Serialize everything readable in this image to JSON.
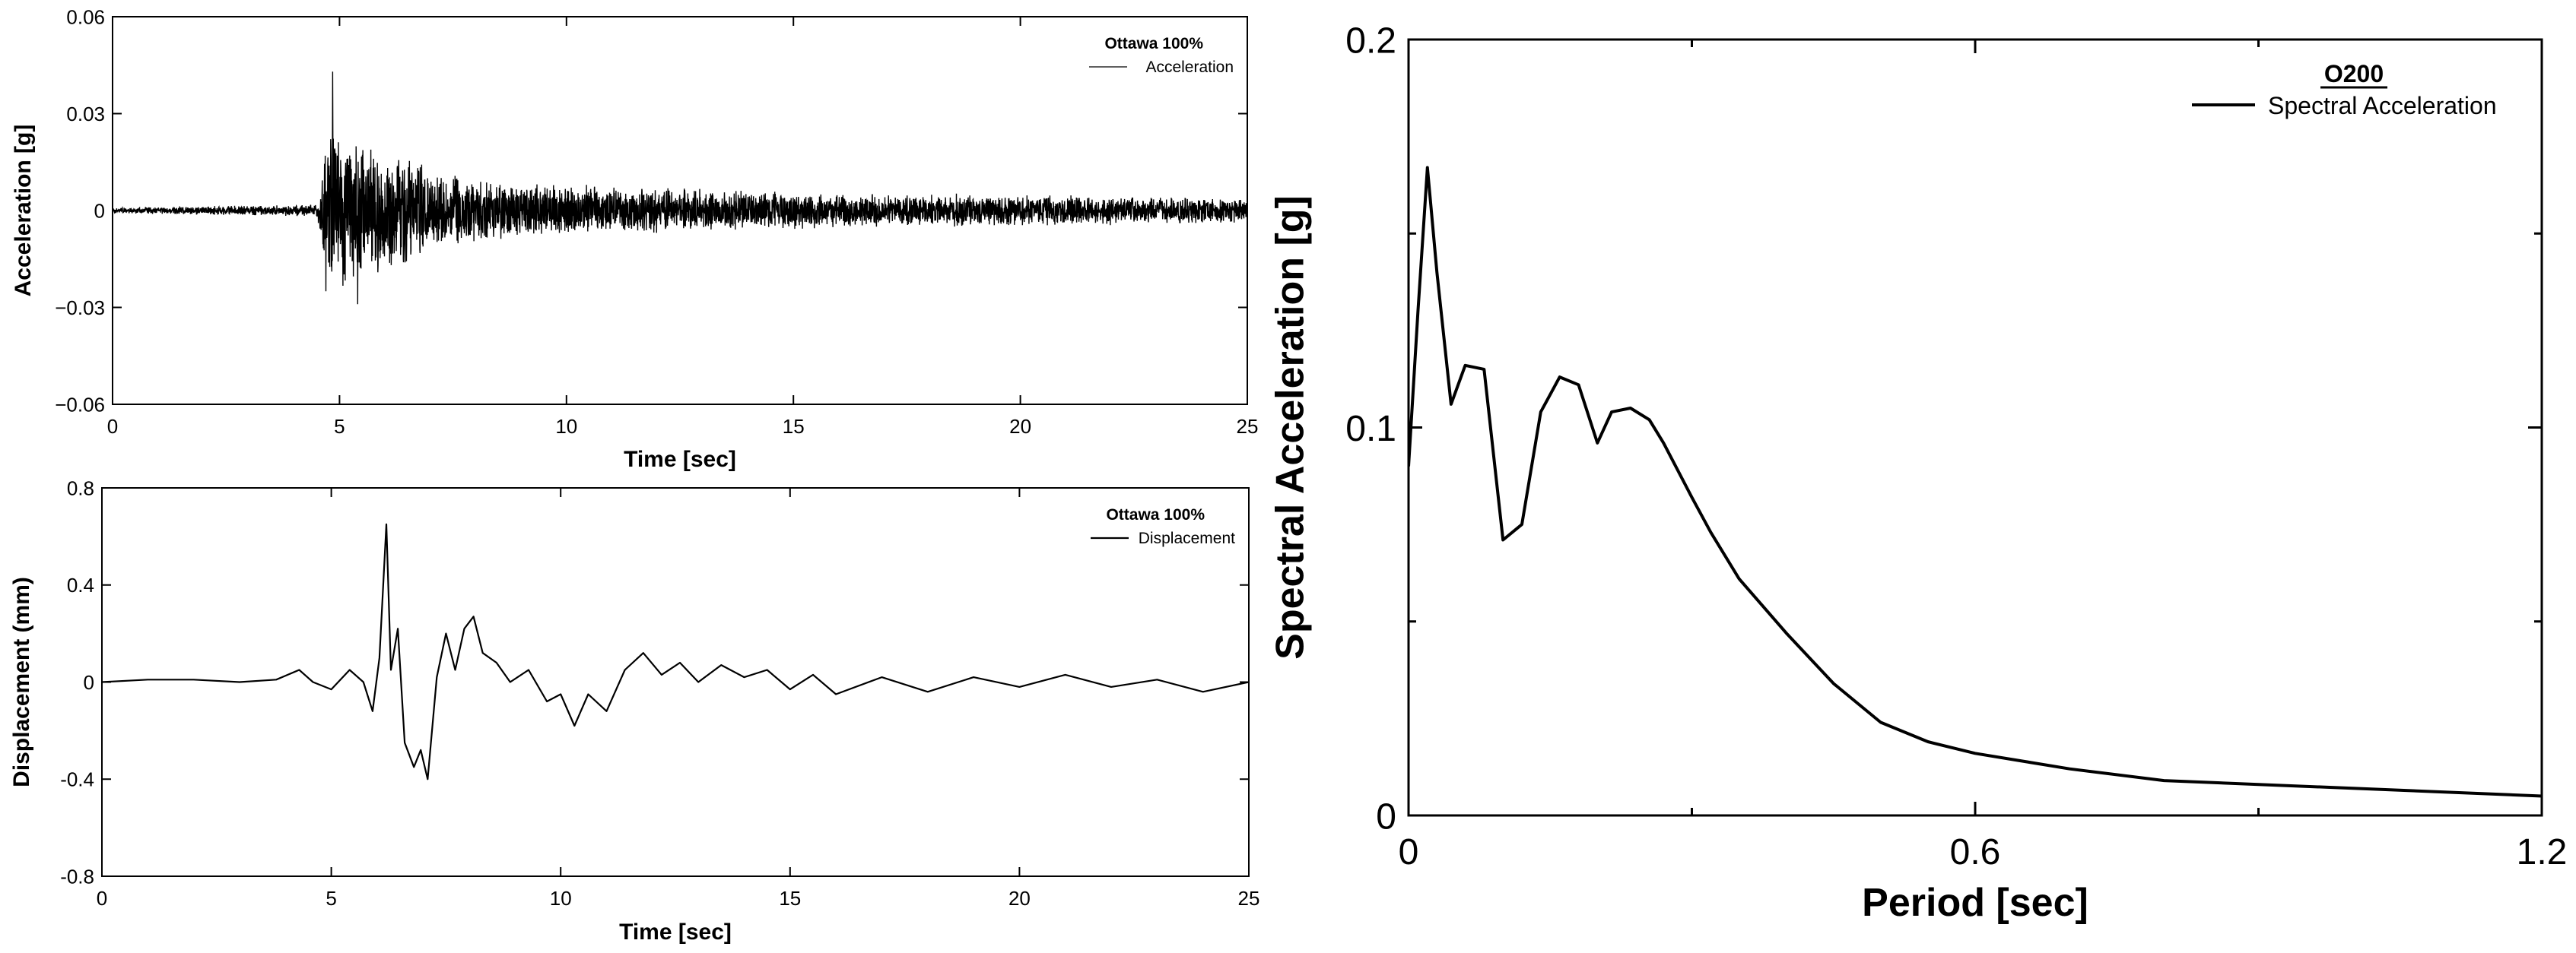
{
  "chart_data": [
    {
      "type": "line",
      "xlabel": "Time [sec]",
      "ylabel": "Acceleration [g]",
      "xlim": [
        0,
        25
      ],
      "ylim": [
        -0.06,
        0.06
      ],
      "xticks": [
        "0",
        "5",
        "10",
        "15",
        "20",
        "25"
      ],
      "yticks": [
        "0.06",
        "0.03",
        "0",
        "−0.03",
        "−0.06"
      ],
      "legend": {
        "title": "Ottawa 100%",
        "entries": [
          "Acceleration"
        ],
        "placement": "top-right"
      },
      "envelope": {
        "t": [
          0,
          4.5,
          4.8,
          5.5,
          6.5,
          7.5,
          9,
          11,
          15,
          20,
          25
        ],
        "amp": [
          0.001,
          0.002,
          0.03,
          0.022,
          0.018,
          0.012,
          0.009,
          0.008,
          0.006,
          0.005,
          0.004
        ]
      },
      "series": [
        {
          "color": "#000000"
        }
      ],
      "peaks": [
        {
          "t": 4.85,
          "value": 0.043
        },
        {
          "t": 5.4,
          "value": -0.029
        },
        {
          "t": 4.7,
          "value": -0.025
        }
      ]
    },
    {
      "type": "line",
      "xlabel": "Time [sec]",
      "ylabel": "Displacement (mm)",
      "xlim": [
        0,
        25
      ],
      "ylim": [
        -0.8,
        0.8
      ],
      "xticks": [
        "0",
        "5",
        "10",
        "15",
        "20",
        "25"
      ],
      "yticks": [
        "0.8",
        "0.4",
        "0",
        "-0.4",
        "-0.8"
      ],
      "legend": {
        "title": "Ottawa 100%",
        "entries": [
          "Displacement"
        ],
        "placement": "top-right"
      },
      "series": [
        {
          "color": "#000000",
          "x": [
            0,
            1,
            2,
            3,
            3.8,
            4.3,
            4.6,
            5.0,
            5.4,
            5.7,
            5.9,
            6.05,
            6.2,
            6.3,
            6.45,
            6.6,
            6.8,
            6.95,
            7.1,
            7.3,
            7.5,
            7.7,
            7.9,
            8.1,
            8.3,
            8.6,
            8.9,
            9.3,
            9.7,
            10.0,
            10.3,
            10.6,
            11.0,
            11.4,
            11.8,
            12.2,
            12.6,
            13.0,
            13.5,
            14.0,
            14.5,
            15.0,
            15.5,
            16.0,
            17.0,
            18.0,
            19.0,
            20.0,
            21.0,
            22.0,
            23.0,
            24.0,
            25.0
          ],
          "y": [
            0.0,
            0.01,
            0.01,
            0.0,
            0.01,
            0.05,
            0.0,
            -0.03,
            0.05,
            0.0,
            -0.12,
            0.1,
            0.65,
            0.05,
            0.22,
            -0.25,
            -0.35,
            -0.28,
            -0.4,
            0.02,
            0.2,
            0.05,
            0.22,
            0.27,
            0.12,
            0.08,
            0.0,
            0.05,
            -0.08,
            -0.05,
            -0.18,
            -0.05,
            -0.12,
            0.05,
            0.12,
            0.03,
            0.08,
            0.0,
            0.07,
            0.02,
            0.05,
            -0.03,
            0.03,
            -0.05,
            0.02,
            -0.04,
            0.02,
            -0.02,
            0.03,
            -0.02,
            0.01,
            -0.04,
            0.0
          ]
        }
      ]
    },
    {
      "type": "line",
      "xlabel": "Period [sec]",
      "ylabel": "Spectral Acceleration [g]",
      "xlim": [
        0,
        1.2
      ],
      "ylim": [
        0,
        0.2
      ],
      "xticks": [
        "0",
        "0.6",
        "1.2"
      ],
      "yticks": [
        "0.2",
        "0.1",
        "0"
      ],
      "legend": {
        "title": "O200",
        "entries": [
          "Spectral Acceleration"
        ],
        "placement": "top-right"
      },
      "series": [
        {
          "color": "#000000",
          "x": [
            0,
            0.01,
            0.02,
            0.03,
            0.045,
            0.06,
            0.08,
            0.1,
            0.12,
            0.14,
            0.16,
            0.18,
            0.2,
            0.215,
            0.235,
            0.255,
            0.27,
            0.3,
            0.32,
            0.35,
            0.4,
            0.45,
            0.5,
            0.55,
            0.6,
            0.65,
            0.7,
            0.8,
            0.9,
            1.0,
            1.1,
            1.2
          ],
          "y": [
            0.09,
            0.13,
            0.167,
            0.14,
            0.106,
            0.116,
            0.115,
            0.071,
            0.075,
            0.104,
            0.113,
            0.111,
            0.096,
            0.104,
            0.105,
            0.102,
            0.096,
            0.082,
            0.073,
            0.061,
            0.047,
            0.034,
            0.024,
            0.019,
            0.016,
            0.014,
            0.012,
            0.009,
            0.008,
            0.007,
            0.006,
            0.005
          ]
        }
      ]
    }
  ]
}
